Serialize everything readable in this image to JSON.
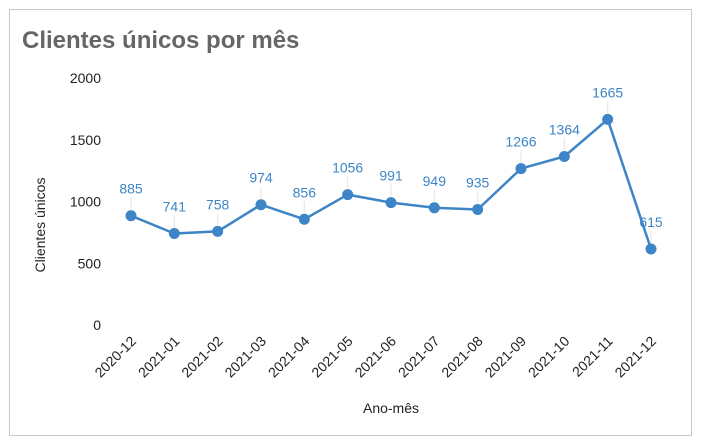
{
  "chart_data": {
    "type": "line",
    "title": "Clientes únicos por mês",
    "xlabel": "Ano-mês",
    "ylabel": "Clientes únicos",
    "ylim": [
      0,
      2000
    ],
    "yticks": [
      "0",
      "500",
      "1000",
      "1500",
      "2000"
    ],
    "grid": false,
    "legend": "none",
    "categories": [
      "2020-12",
      "2021-01",
      "2021-02",
      "2021-03",
      "2021-04",
      "2021-05",
      "2021-06",
      "2021-07",
      "2021-08",
      "2021-09",
      "2021-10",
      "2021-11",
      "2021-12"
    ],
    "series": [
      {
        "values": [
          885,
          741,
          758,
          974,
          856,
          1056,
          991,
          949,
          935,
          1266,
          1364,
          1665,
          615
        ],
        "color": "#3d85c6"
      }
    ]
  }
}
